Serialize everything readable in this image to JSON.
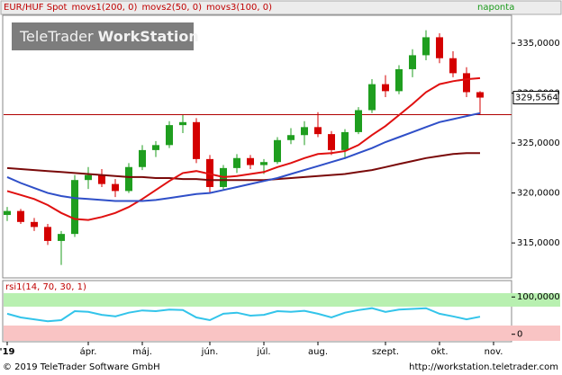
{
  "chart_data": [
    {
      "type": "candlestick",
      "title": "EUR/HUF Spot",
      "frequency": "naponta",
      "categories": [
        "'19",
        null,
        null,
        null,
        null,
        null,
        "ápr.",
        null,
        null,
        null,
        "máj.",
        null,
        null,
        null,
        null,
        "jún.",
        null,
        null,
        null,
        "júl.",
        null,
        null,
        null,
        "aug.",
        null,
        null,
        null,
        null,
        "szept.",
        null,
        null,
        null,
        "okt.",
        null,
        null,
        null,
        "nov."
      ],
      "open": [
        317.8,
        318.2,
        317.1,
        316.6,
        315.2,
        315.9,
        321.3,
        321.8,
        320.9,
        320.2,
        322.6,
        324.3,
        324.8,
        326.8,
        327.1,
        323.4,
        320.6,
        322.5,
        323.5,
        322.8,
        323.1,
        325.3,
        325.8,
        326.6,
        325.9,
        324.3,
        326.1,
        328.3,
        330.9,
        330.2,
        332.4,
        333.8,
        335.6,
        333.5,
        332.0,
        330.1,
        null
      ],
      "high": [
        318.6,
        318.4,
        317.5,
        316.9,
        316.2,
        321.8,
        322.6,
        322.4,
        321.4,
        323.0,
        324.8,
        325.2,
        327.2,
        327.8,
        327.5,
        323.8,
        322.8,
        323.9,
        323.8,
        323.4,
        325.6,
        326.5,
        327.2,
        328.1,
        326.2,
        326.4,
        328.6,
        331.4,
        331.8,
        332.8,
        334.4,
        336.3,
        336.0,
        334.2,
        332.6,
        330.2,
        null
      ],
      "low": [
        317.2,
        316.9,
        316.2,
        314.8,
        312.8,
        315.6,
        320.4,
        320.6,
        319.6,
        320.0,
        322.3,
        323.6,
        324.5,
        326.0,
        323.0,
        320.0,
        320.3,
        322.0,
        322.4,
        321.9,
        322.9,
        324.9,
        324.8,
        325.6,
        323.8,
        323.4,
        325.9,
        328.0,
        329.6,
        329.9,
        331.6,
        333.3,
        333.0,
        331.6,
        329.6,
        327.9,
        null
      ],
      "close": [
        318.2,
        317.1,
        316.6,
        315.2,
        315.9,
        321.3,
        321.8,
        320.9,
        320.2,
        322.6,
        324.3,
        324.8,
        326.8,
        327.1,
        323.4,
        320.6,
        322.5,
        323.5,
        322.8,
        323.1,
        325.3,
        325.8,
        326.6,
        325.9,
        324.3,
        326.1,
        328.3,
        330.9,
        330.2,
        332.4,
        333.8,
        335.6,
        333.5,
        332.0,
        330.1,
        329.5564,
        null
      ],
      "up_color": "#1f9e1f",
      "down_color": "#d40000",
      "series": [
        {
          "name": "movs1(200, 0)",
          "color": "#7a0a0a",
          "values": [
            322.5,
            322.4,
            322.3,
            322.2,
            322.1,
            322.0,
            321.9,
            321.8,
            321.7,
            321.6,
            321.6,
            321.5,
            321.5,
            321.4,
            321.4,
            321.3,
            321.3,
            321.3,
            321.3,
            321.3,
            321.4,
            321.5,
            321.6,
            321.7,
            321.8,
            321.9,
            322.1,
            322.3,
            322.6,
            322.9,
            323.2,
            323.5,
            323.7,
            323.9,
            324.0,
            324.0,
            null
          ]
        },
        {
          "name": "movs2(50, 0)",
          "color": "#e01010",
          "values": [
            320.2,
            319.8,
            319.4,
            318.8,
            318.0,
            317.4,
            317.3,
            317.6,
            318.0,
            318.6,
            319.4,
            320.3,
            321.2,
            322.0,
            322.2,
            321.9,
            321.6,
            321.7,
            321.9,
            322.1,
            322.6,
            323.0,
            323.5,
            323.9,
            324.0,
            324.2,
            324.8,
            325.8,
            326.7,
            327.8,
            328.9,
            330.1,
            330.9,
            331.2,
            331.4,
            331.5,
            null
          ]
        },
        {
          "name": "movs3(100, 0)",
          "color": "#2f4fc8",
          "values": [
            321.6,
            321.0,
            320.5,
            320.0,
            319.7,
            319.5,
            319.4,
            319.3,
            319.2,
            319.2,
            319.2,
            319.3,
            319.5,
            319.7,
            319.9,
            320.0,
            320.3,
            320.6,
            320.9,
            321.2,
            321.5,
            321.9,
            322.3,
            322.7,
            323.1,
            323.5,
            324.0,
            324.5,
            325.1,
            325.6,
            326.1,
            326.6,
            327.1,
            327.4,
            327.7,
            328.0,
            null
          ]
        }
      ],
      "ylim": [
        311.5,
        337.8
      ],
      "yticks": [
        {
          "value": 315,
          "label": "315,0000"
        },
        {
          "value": 320,
          "label": "320,0000"
        },
        {
          "value": 325,
          "label": "325,0000"
        },
        {
          "value": 330,
          "label": "330,0000"
        },
        {
          "value": 335,
          "label": "335,0000"
        }
      ],
      "hline": 327.85,
      "hline_color": "#b00000",
      "last_label": "329,5564"
    },
    {
      "type": "line",
      "title": "rsi1(14, 70, 30, 1)",
      "series": [
        {
          "color": "#33c4ea",
          "values": [
            55,
            45,
            40,
            35,
            38,
            62,
            60,
            52,
            48,
            58,
            64,
            62,
            66,
            65,
            45,
            38,
            55,
            58,
            50,
            52,
            62,
            60,
            63,
            55,
            45,
            58,
            65,
            70,
            60,
            66,
            68,
            70,
            55,
            48,
            40,
            47,
            null
          ]
        }
      ],
      "ylim": [
        -20,
        144
      ],
      "yticks": [
        {
          "value": 100,
          "label": "100,0000"
        },
        0
      ]
    }
  ],
  "logo": {
    "brand": "TeleTrader",
    "product": "WorkStation"
  },
  "footer": {
    "copyright": "© 2019 TeleTrader Software GmbH",
    "url": "http://workstation.teletrader.com"
  }
}
